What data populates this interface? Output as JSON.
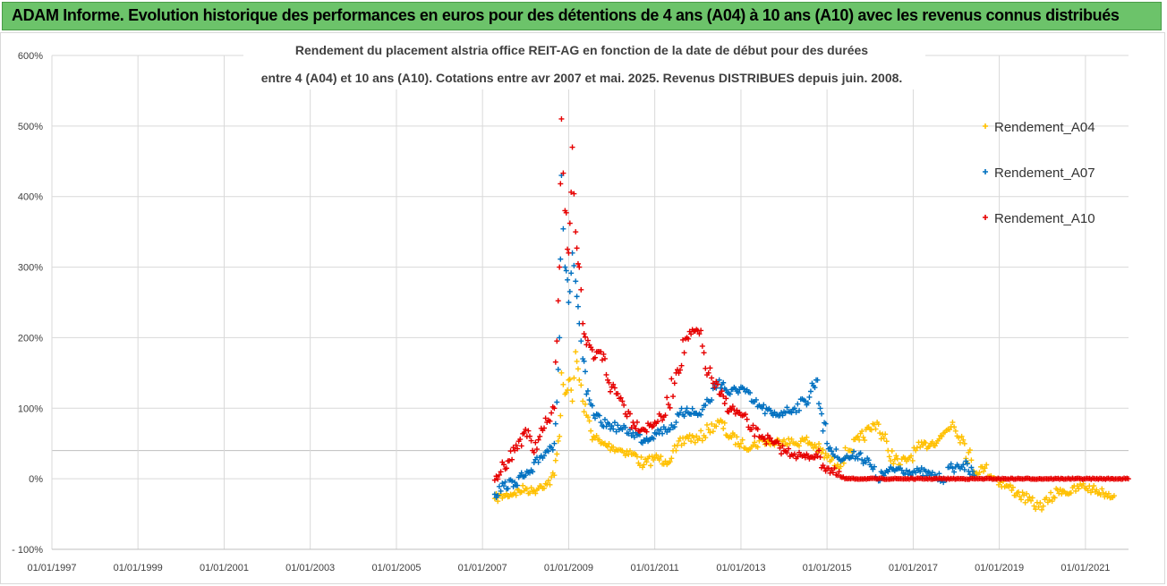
{
  "banner": {
    "text": "ADAM Informe. Evolution historique des performances en euros pour des détentions de 4 ans (A04) à 10 ans (A10) avec les revenus connus distribués",
    "background": "#6cc36a"
  },
  "chart_data": {
    "type": "scatter",
    "title_line1": "Rendement du placement alstria office REIT-AG en fonction de la date de début pour des durées",
    "title_line2": "entre 4 (A04) et 10 ans (A10). Cotations entre avr 2007 et mai. 2025. Revenus DISTRIBUES depuis juin. 2008.",
    "y_ticks": [
      "- 100%",
      "0%",
      "100%",
      "200%",
      "300%",
      "400%",
      "500%",
      "600%"
    ],
    "ylim": [
      -100,
      600
    ],
    "x_ticks": [
      "01/01/1997",
      "01/01/1999",
      "01/01/2001",
      "01/01/2003",
      "01/01/2005",
      "01/01/2007",
      "01/01/2009",
      "01/01/2011",
      "01/01/2013",
      "01/01/2015",
      "01/01/2017",
      "01/01/2019",
      "01/01/2021"
    ],
    "xlim": [
      "1997-01-01",
      "2022-01-01"
    ],
    "legend_position": "right",
    "grid": true,
    "series": [
      {
        "name": "Rendement_A04",
        "color": "#ffc000",
        "marker": "+",
        "points": [
          [
            "2007-04-15",
            -28
          ],
          [
            "2007-07-01",
            -24
          ],
          [
            "2007-10-01",
            -20
          ],
          [
            "2008-01-01",
            -14
          ],
          [
            "2008-03-01",
            -18
          ],
          [
            "2008-05-01",
            -10
          ],
          [
            "2008-07-01",
            -8
          ],
          [
            "2008-09-01",
            5
          ],
          [
            "2008-10-15",
            60
          ],
          [
            "2008-11-01",
            150
          ],
          [
            "2008-12-01",
            120
          ],
          [
            "2009-01-01",
            140
          ],
          [
            "2009-02-01",
            110
          ],
          [
            "2009-03-01",
            180
          ],
          [
            "2009-04-01",
            140
          ],
          [
            "2009-05-01",
            110
          ],
          [
            "2009-06-01",
            90
          ],
          [
            "2009-08-01",
            60
          ],
          [
            "2009-10-01",
            50
          ],
          [
            "2010-01-01",
            45
          ],
          [
            "2010-04-01",
            40
          ],
          [
            "2010-07-01",
            35
          ],
          [
            "2010-10-01",
            20
          ],
          [
            "2011-01-01",
            30
          ],
          [
            "2011-04-01",
            25
          ],
          [
            "2011-07-01",
            40
          ],
          [
            "2011-10-01",
            60
          ],
          [
            "2012-01-01",
            55
          ],
          [
            "2012-04-01",
            70
          ],
          [
            "2012-07-01",
            80
          ],
          [
            "2012-10-01",
            60
          ],
          [
            "2013-01-01",
            50
          ],
          [
            "2013-04-01",
            45
          ],
          [
            "2013-07-01",
            55
          ],
          [
            "2013-10-01",
            50
          ],
          [
            "2014-01-01",
            55
          ],
          [
            "2014-04-01",
            50
          ],
          [
            "2014-07-01",
            55
          ],
          [
            "2014-10-01",
            45
          ],
          [
            "2015-01-01",
            30
          ],
          [
            "2015-04-01",
            20
          ],
          [
            "2015-07-01",
            40
          ],
          [
            "2015-10-01",
            55
          ],
          [
            "2016-01-01",
            70
          ],
          [
            "2016-03-01",
            80
          ],
          [
            "2016-06-01",
            40
          ],
          [
            "2016-09-01",
            20
          ],
          [
            "2016-12-01",
            30
          ],
          [
            "2017-03-01",
            45
          ],
          [
            "2017-06-01",
            50
          ],
          [
            "2017-09-01",
            60
          ],
          [
            "2017-12-01",
            80
          ],
          [
            "2018-03-01",
            55
          ],
          [
            "2018-06-01",
            10
          ],
          [
            "2018-09-01",
            15
          ],
          [
            "2018-12-01",
            0
          ],
          [
            "2019-03-01",
            -10
          ],
          [
            "2019-06-01",
            -20
          ],
          [
            "2019-09-01",
            -30
          ],
          [
            "2019-12-01",
            -40
          ],
          [
            "2020-03-01",
            -30
          ],
          [
            "2020-06-01",
            -15
          ],
          [
            "2020-09-01",
            -20
          ],
          [
            "2020-12-01",
            -10
          ],
          [
            "2021-03-01",
            -15
          ],
          [
            "2021-06-01",
            -20
          ],
          [
            "2021-09-01",
            -24
          ]
        ]
      },
      {
        "name": "Rendement_A07",
        "color": "#0070c0",
        "marker": "+",
        "points": [
          [
            "2007-04-15",
            -22
          ],
          [
            "2007-07-01",
            -10
          ],
          [
            "2007-10-01",
            -5
          ],
          [
            "2008-01-01",
            5
          ],
          [
            "2008-03-01",
            10
          ],
          [
            "2008-05-01",
            30
          ],
          [
            "2008-07-01",
            40
          ],
          [
            "2008-09-01",
            50
          ],
          [
            "2008-10-15",
            200
          ],
          [
            "2008-11-01",
            430
          ],
          [
            "2008-12-01",
            300
          ],
          [
            "2009-01-01",
            250
          ],
          [
            "2009-02-01",
            320
          ],
          [
            "2009-03-01",
            280
          ],
          [
            "2009-04-01",
            220
          ],
          [
            "2009-05-01",
            170
          ],
          [
            "2009-06-01",
            120
          ],
          [
            "2009-08-01",
            90
          ],
          [
            "2009-10-01",
            80
          ],
          [
            "2010-01-01",
            75
          ],
          [
            "2010-04-01",
            70
          ],
          [
            "2010-07-01",
            65
          ],
          [
            "2010-10-01",
            55
          ],
          [
            "2011-01-01",
            65
          ],
          [
            "2011-04-01",
            70
          ],
          [
            "2011-07-01",
            80
          ],
          [
            "2011-10-01",
            100
          ],
          [
            "2012-01-01",
            90
          ],
          [
            "2012-04-01",
            110
          ],
          [
            "2012-07-01",
            140
          ],
          [
            "2012-10-01",
            120
          ],
          [
            "2013-01-01",
            130
          ],
          [
            "2013-04-01",
            110
          ],
          [
            "2013-07-01",
            100
          ],
          [
            "2013-10-01",
            90
          ],
          [
            "2014-01-01",
            95
          ],
          [
            "2014-04-01",
            100
          ],
          [
            "2014-07-01",
            110
          ],
          [
            "2014-10-01",
            140
          ],
          [
            "2015-01-01",
            50
          ],
          [
            "2015-04-01",
            30
          ],
          [
            "2015-07-01",
            30
          ],
          [
            "2015-10-01",
            35
          ],
          [
            "2016-01-01",
            20
          ],
          [
            "2016-03-01",
            0
          ],
          [
            "2016-06-01",
            10
          ],
          [
            "2016-09-01",
            15
          ],
          [
            "2016-12-01",
            10
          ],
          [
            "2017-03-01",
            10
          ],
          [
            "2017-06-01",
            5
          ],
          [
            "2017-09-01",
            0
          ],
          [
            "2017-12-01",
            15
          ],
          [
            "2018-03-01",
            20
          ],
          [
            "2018-06-01",
            5
          ]
        ]
      },
      {
        "name": "Rendement_A10",
        "color": "#e60000",
        "marker": "+",
        "points": [
          [
            "2007-04-15",
            -2
          ],
          [
            "2007-07-01",
            20
          ],
          [
            "2007-10-01",
            40
          ],
          [
            "2008-01-01",
            70
          ],
          [
            "2008-03-01",
            40
          ],
          [
            "2008-05-01",
            60
          ],
          [
            "2008-07-01",
            80
          ],
          [
            "2008-09-01",
            100
          ],
          [
            "2008-10-15",
            300
          ],
          [
            "2008-11-01",
            510
          ],
          [
            "2008-12-01",
            380
          ],
          [
            "2009-01-01",
            320
          ],
          [
            "2009-02-01",
            470
          ],
          [
            "2009-03-01",
            350
          ],
          [
            "2009-04-01",
            300
          ],
          [
            "2009-05-01",
            220
          ],
          [
            "2009-06-01",
            190
          ],
          [
            "2009-08-01",
            170
          ],
          [
            "2009-10-01",
            180
          ],
          [
            "2010-01-01",
            130
          ],
          [
            "2010-04-01",
            110
          ],
          [
            "2010-07-01",
            80
          ],
          [
            "2010-10-01",
            70
          ],
          [
            "2011-01-01",
            80
          ],
          [
            "2011-04-01",
            90
          ],
          [
            "2011-07-01",
            150
          ],
          [
            "2011-10-01",
            200
          ],
          [
            "2012-01-01",
            210
          ],
          [
            "2012-04-01",
            150
          ],
          [
            "2012-07-01",
            120
          ],
          [
            "2012-10-01",
            100
          ],
          [
            "2013-01-01",
            90
          ],
          [
            "2013-04-01",
            70
          ],
          [
            "2013-07-01",
            60
          ],
          [
            "2013-10-01",
            50
          ],
          [
            "2014-01-01",
            40
          ],
          [
            "2014-04-01",
            35
          ],
          [
            "2014-07-01",
            30
          ],
          [
            "2014-10-01",
            35
          ],
          [
            "2015-01-01",
            15
          ],
          [
            "2015-04-01",
            5
          ],
          [
            "2015-06-01",
            0
          ],
          [
            "2021-12-31",
            0
          ]
        ]
      }
    ]
  }
}
